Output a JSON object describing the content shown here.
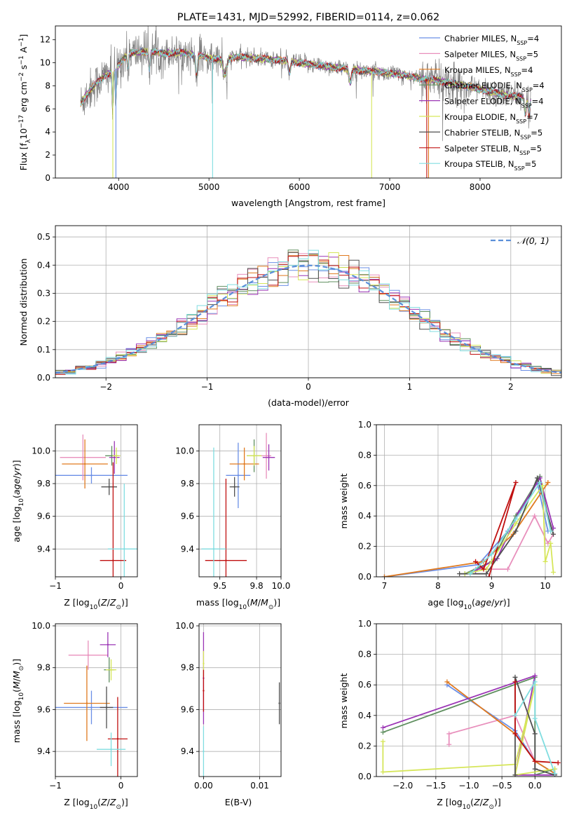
{
  "colors": {
    "chabrier_miles": "#6b8fe6",
    "salpeter_miles": "#e88fbc",
    "kroupa_miles": "#e07a1f",
    "chabrier_elodie": "#5f8f5f",
    "salpeter_elodie": "#9b35b5",
    "kroupa_elodie": "#d6e65a",
    "chabrier_stelib": "#505050",
    "salpeter_stelib": "#c01010",
    "kroupa_stelib": "#80dde0",
    "data_line": "#808080",
    "normal_curve": "#5b8fd9"
  },
  "chart_data": [
    {
      "type": "line",
      "title": "PLATE=1431, MJD=52992, FIBERID=0114, z=0.062",
      "xlabel": "wavelength [Angstrom, rest frame]",
      "ylabel": "Flux [f_λ 10^-17 erg cm^-2 s^-1 A^-1]",
      "xlim": [
        3300,
        8900
      ],
      "ylim": [
        0,
        13.2
      ],
      "xticks": [
        4000,
        5000,
        6000,
        7000,
        8000
      ],
      "yticks": [
        0,
        2,
        4,
        6,
        8,
        10,
        12
      ],
      "grid": false,
      "legend_position": "top-right",
      "series": [
        {
          "name": "Chabrier MILES, N_SSP=4",
          "color_key": "chabrier_miles"
        },
        {
          "name": "Salpeter MILES, N_SSP=5",
          "color_key": "salpeter_miles"
        },
        {
          "name": "Kroupa MILES, N_SSP=4",
          "color_key": "kroupa_miles"
        },
        {
          "name": "Chabrier ELODIE, N_SSP=4",
          "color_key": "chabrier_elodie"
        },
        {
          "name": "Salpeter ELODIE, N_SSP=4",
          "color_key": "salpeter_elodie"
        },
        {
          "name": "Kroupa ELODIE, N_SSP=7",
          "color_key": "kroupa_elodie"
        },
        {
          "name": "Chabrier STELIB, N_SSP=5",
          "color_key": "chabrier_stelib"
        },
        {
          "name": "Salpeter STELIB, N_SSP=5",
          "color_key": "salpeter_stelib"
        },
        {
          "name": "Kroupa STELIB, N_SSP=5",
          "color_key": "kroupa_stelib"
        }
      ],
      "continuum_points": {
        "x": [
          3580,
          3700,
          3850,
          3950,
          4100,
          4300,
          4500,
          4700,
          4900,
          5100,
          5300,
          5500,
          5700,
          5900,
          6100,
          6300,
          6500,
          6700,
          6900,
          7100,
          7300,
          7500,
          7700,
          7900,
          8100,
          8300,
          8500
        ],
        "y": [
          6.5,
          7.8,
          8.9,
          9.3,
          10.8,
          11.0,
          10.8,
          10.9,
          10.6,
          10.3,
          10.5,
          10.4,
          10.3,
          10.1,
          9.9,
          9.7,
          9.5,
          9.3,
          9.2,
          9.0,
          8.7,
          8.5,
          8.2,
          7.9,
          7.5,
          7.2,
          7.0
        ]
      }
    },
    {
      "type": "line",
      "xlabel": "(data-model)/error",
      "ylabel": "Normed distribution",
      "xlim": [
        -2.5,
        2.5
      ],
      "ylim": [
        0,
        0.54
      ],
      "xticks": [
        -2,
        -1,
        0,
        1,
        2
      ],
      "yticks": [
        0.0,
        0.1,
        0.2,
        0.3,
        0.4,
        0.5
      ],
      "grid": true,
      "legend_position": "top-right",
      "legend": "𝒩(0, 1)"
    },
    {
      "type": "scatter",
      "xlabel": "Z [log10(Z/Z⊙)]",
      "ylabel": "age  [log10(age/yr)]",
      "xlim": [
        -1.0,
        0.25
      ],
      "ylim": [
        9.23,
        10.16
      ],
      "xticks": [
        -1,
        0
      ],
      "yticks": [
        9.4,
        9.6,
        9.8,
        10.0
      ],
      "grid": true,
      "points": [
        {
          "x": -0.45,
          "y": 9.85,
          "xerr": 0.55,
          "yerr": 0.05,
          "color_key": "chabrier_miles"
        },
        {
          "x": -0.58,
          "y": 9.96,
          "xerr": 0.35,
          "yerr": 0.14,
          "color_key": "salpeter_miles"
        },
        {
          "x": -0.55,
          "y": 9.92,
          "xerr": 0.35,
          "yerr": 0.15,
          "color_key": "kroupa_miles"
        },
        {
          "x": -0.14,
          "y": 9.97,
          "xerr": 0.1,
          "yerr": 0.06,
          "color_key": "chabrier_elodie"
        },
        {
          "x": -0.1,
          "y": 9.96,
          "xerr": 0.08,
          "yerr": 0.1,
          "color_key": "salpeter_elodie"
        },
        {
          "x": -0.07,
          "y": 9.97,
          "xerr": 0.06,
          "yerr": 0.05,
          "color_key": "kroupa_elodie"
        },
        {
          "x": -0.18,
          "y": 9.78,
          "xerr": 0.12,
          "yerr": 0.05,
          "color_key": "chabrier_stelib"
        },
        {
          "x": -0.12,
          "y": 9.33,
          "xerr": 0.2,
          "yerr": 0.6,
          "color_key": "salpeter_stelib"
        },
        {
          "x": 0.05,
          "y": 9.4,
          "xerr": 0.25,
          "yerr": 0.4,
          "color_key": "kroupa_stelib"
        }
      ]
    },
    {
      "type": "scatter",
      "xlabel": "mass [log10(M/M⊙)]",
      "xlim": [
        9.33,
        10.0
      ],
      "ylim": [
        9.23,
        10.16
      ],
      "xticks": [
        9.5,
        9.8,
        10.0
      ],
      "xticklabels": [
        "9.5",
        "9.8",
        "10.0"
      ],
      "yticks": [
        9.4,
        9.6,
        9.8,
        10.0
      ],
      "grid": true,
      "points": [
        {
          "x": 9.65,
          "y": 9.85,
          "xerr": 0.1,
          "yerr": 0.2,
          "color_key": "chabrier_miles"
        },
        {
          "x": 9.88,
          "y": 9.97,
          "xerr": 0.04,
          "yerr": 0.14,
          "color_key": "salpeter_miles"
        },
        {
          "x": 9.7,
          "y": 9.92,
          "xerr": 0.12,
          "yerr": 0.1,
          "color_key": "kroupa_miles"
        },
        {
          "x": 9.78,
          "y": 9.97,
          "xerr": 0.06,
          "yerr": 0.1,
          "color_key": "chabrier_elodie"
        },
        {
          "x": 9.9,
          "y": 9.96,
          "xerr": 0.05,
          "yerr": 0.08,
          "color_key": "salpeter_elodie"
        },
        {
          "x": 9.78,
          "y": 9.97,
          "xerr": 0.06,
          "yerr": 0.06,
          "color_key": "kroupa_elodie"
        },
        {
          "x": 9.62,
          "y": 9.78,
          "xerr": 0.04,
          "yerr": 0.06,
          "color_key": "chabrier_stelib"
        },
        {
          "x": 9.55,
          "y": 9.33,
          "xerr": 0.17,
          "yerr": 0.5,
          "color_key": "salpeter_stelib"
        },
        {
          "x": 9.45,
          "y": 9.4,
          "xerr": 0.1,
          "yerr": 0.62,
          "color_key": "kroupa_stelib"
        }
      ]
    },
    {
      "type": "line",
      "xlabel": "age  [log10(age/yr)]",
      "ylabel": "mass weight",
      "xlim": [
        6.85,
        10.3
      ],
      "ylim": [
        0,
        1.0
      ],
      "xticks": [
        7,
        8,
        9,
        10
      ],
      "yticks": [
        0.0,
        0.2,
        0.4,
        0.6,
        0.8,
        1.0
      ],
      "grid": true,
      "series": [
        {
          "color_key": "chabrier_miles",
          "x": [
            7.0,
            8.75,
            9.3,
            9.85,
            10.05
          ],
          "y": [
            0.0,
            0.08,
            0.3,
            0.62,
            0.3
          ]
        },
        {
          "color_key": "salpeter_miles",
          "x": [
            8.7,
            9.3,
            9.8,
            10.05,
            10.15
          ],
          "y": [
            0.05,
            0.05,
            0.4,
            0.22,
            0.28
          ]
        },
        {
          "color_key": "kroupa_miles",
          "x": [
            7.0,
            8.85,
            9.4,
            10.05
          ],
          "y": [
            0.0,
            0.1,
            0.28,
            0.62
          ]
        },
        {
          "color_key": "chabrier_elodie",
          "x": [
            8.5,
            9.0,
            9.45,
            9.9,
            10.1
          ],
          "y": [
            0.02,
            0.1,
            0.4,
            0.66,
            0.3
          ]
        },
        {
          "color_key": "salpeter_elodie",
          "x": [
            8.7,
            9.1,
            9.5,
            9.9,
            10.15
          ],
          "y": [
            0.04,
            0.12,
            0.42,
            0.65,
            0.32
          ]
        },
        {
          "color_key": "kroupa_elodie",
          "x": [
            8.5,
            8.9,
            9.45,
            9.95,
            10.0,
            10.1,
            10.15
          ],
          "y": [
            0.02,
            0.05,
            0.35,
            0.6,
            0.1,
            0.22,
            0.03
          ]
        },
        {
          "color_key": "chabrier_stelib",
          "x": [
            8.4,
            8.9,
            9.45,
            9.85,
            10.15
          ],
          "y": [
            0.02,
            0.02,
            0.3,
            0.65,
            0.28
          ]
        },
        {
          "color_key": "salpeter_stelib",
          "x": [
            8.7,
            8.85,
            9.45,
            8.95
          ],
          "y": [
            0.1,
            0.05,
            0.62,
            0.0
          ]
        },
        {
          "color_key": "kroupa_stelib",
          "x": [
            8.6,
            9.0,
            9.45,
            9.9,
            10.1
          ],
          "y": [
            0.02,
            0.15,
            0.38,
            0.62,
            0.3
          ]
        }
      ]
    },
    {
      "type": "scatter",
      "xlabel": "Z [log10(Z/Z⊙)]",
      "ylabel": "mass [log10(M/M⊙)]",
      "xlim": [
        -1.0,
        0.25
      ],
      "ylim": [
        9.28,
        10.01
      ],
      "xticks": [
        -1,
        0
      ],
      "yticks": [
        9.4,
        9.6,
        9.8,
        10.0
      ],
      "grid": true,
      "points": [
        {
          "x": -0.45,
          "y": 9.61,
          "xerr": 0.55,
          "yerr": 0.08,
          "color_key": "chabrier_miles"
        },
        {
          "x": -0.5,
          "y": 9.86,
          "xerr": 0.3,
          "yerr": 0.07,
          "color_key": "salpeter_miles"
        },
        {
          "x": -0.52,
          "y": 9.63,
          "xerr": 0.35,
          "yerr": 0.18,
          "color_key": "kroupa_miles"
        },
        {
          "x": -0.18,
          "y": 9.79,
          "xerr": 0.08,
          "yerr": 0.06,
          "color_key": "chabrier_elodie"
        },
        {
          "x": -0.2,
          "y": 9.91,
          "xerr": 0.12,
          "yerr": 0.06,
          "color_key": "salpeter_elodie"
        },
        {
          "x": -0.15,
          "y": 9.79,
          "xerr": 0.08,
          "yerr": 0.05,
          "color_key": "kroupa_elodie"
        },
        {
          "x": -0.22,
          "y": 9.61,
          "xerr": 0.1,
          "yerr": 0.1,
          "color_key": "chabrier_stelib"
        },
        {
          "x": -0.05,
          "y": 9.46,
          "xerr": 0.15,
          "yerr": 0.2,
          "color_key": "salpeter_stelib"
        },
        {
          "x": -0.15,
          "y": 9.41,
          "xerr": 0.22,
          "yerr": 0.08,
          "color_key": "kroupa_stelib"
        }
      ]
    },
    {
      "type": "scatter",
      "xlabel": "E(B-V)",
      "xlim": [
        -0.0008,
        0.0138
      ],
      "ylim": [
        9.28,
        10.01
      ],
      "xticks": [
        0.0,
        0.01
      ],
      "xticklabels": [
        "0.00",
        "0.01"
      ],
      "yticks": [
        9.4,
        9.6,
        9.8,
        10.0
      ],
      "grid": true,
      "points": [
        {
          "x": 0.0,
          "y": 9.75,
          "yerr": 0.22,
          "color_key": "salpeter_elodie"
        },
        {
          "x": 0.0,
          "y": 9.82,
          "yerr": 0.06,
          "color_key": "kroupa_elodie"
        },
        {
          "x": 0.0,
          "y": 9.69,
          "yerr": 0.1,
          "color_key": "salpeter_stelib"
        },
        {
          "x": 0.0,
          "y": 9.4,
          "yerr": 0.12,
          "color_key": "kroupa_stelib"
        },
        {
          "x": 0.0135,
          "y": 9.63,
          "yerr": 0.1,
          "color_key": "chabrier_stelib"
        }
      ]
    },
    {
      "type": "line",
      "xlabel": "Z [log10(Z/Z⊙)]",
      "ylabel": "mass weight",
      "xlim": [
        -2.4,
        0.4
      ],
      "ylim": [
        0,
        1.0
      ],
      "xticks": [
        -2.0,
        -1.5,
        -1.0,
        -0.5,
        0.0
      ],
      "xticklabels": [
        "−2.0",
        "−1.5",
        "−1.0",
        "−0.5",
        "0.0"
      ],
      "yticks": [
        0.0,
        0.2,
        0.4,
        0.6,
        0.8,
        1.0
      ],
      "grid": true,
      "series": [
        {
          "color_key": "chabrier_miles",
          "x": [
            -1.33,
            -0.3,
            0.0,
            0.3
          ],
          "y": [
            0.6,
            0.3,
            0.1,
            0.02
          ]
        },
        {
          "color_key": "salpeter_miles",
          "x": [
            -1.3,
            -1.3,
            -0.3,
            0.0,
            0.0
          ],
          "y": [
            0.21,
            0.28,
            0.4,
            0.1,
            0.05
          ]
        },
        {
          "color_key": "kroupa_miles",
          "x": [
            -1.33,
            -0.3,
            0.0,
            0.3
          ],
          "y": [
            0.62,
            0.28,
            0.1,
            0.02
          ]
        },
        {
          "color_key": "chabrier_elodie",
          "x": [
            -2.3,
            0.0,
            0.0,
            0.3
          ],
          "y": [
            0.29,
            0.65,
            0.01,
            0.05
          ]
        },
        {
          "color_key": "salpeter_elodie",
          "x": [
            -2.3,
            0.0,
            -0.3,
            0.3
          ],
          "y": [
            0.32,
            0.66,
            0.01,
            0.01
          ]
        },
        {
          "color_key": "kroupa_elodie",
          "x": [
            -2.3,
            -2.3,
            -0.3,
            0.0,
            -0.3,
            0.3
          ],
          "y": [
            0.23,
            0.03,
            0.08,
            0.6,
            0.01,
            0.05
          ]
        },
        {
          "color_key": "chabrier_stelib",
          "x": [
            -0.3,
            -0.3,
            0.0,
            0.0,
            0.3
          ],
          "y": [
            0.01,
            0.65,
            0.28,
            0.05,
            0.01
          ]
        },
        {
          "color_key": "salpeter_stelib",
          "x": [
            -0.3,
            -0.3,
            0.0,
            0.35
          ],
          "y": [
            0.62,
            0.28,
            0.1,
            0.09
          ]
        },
        {
          "color_key": "kroupa_stelib",
          "x": [
            -0.3,
            0.0,
            0.0,
            0.3
          ],
          "y": [
            0.4,
            0.62,
            0.38,
            0.02
          ]
        }
      ]
    }
  ]
}
